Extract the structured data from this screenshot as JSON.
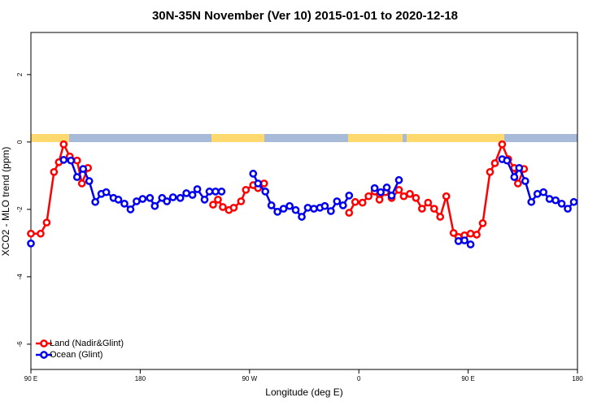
{
  "chart_data": {
    "type": "line",
    "title": "30N-35N November (Ver 10)   2015-01-01 to 2020-12-18",
    "x_label": "Longitude (deg E)",
    "y_label": "XCO2 - MLO trend (ppm)",
    "xlim": [
      90,
      540
    ],
    "xticks": [
      {
        "value": 90,
        "label": "90 E"
      },
      180,
      {
        "value": 270,
        "label": "90 W"
      },
      {
        "value": 360,
        "label": "0"
      },
      {
        "value": 450,
        "label": "90 E"
      },
      {
        "value": 540,
        "label": "180"
      }
    ],
    "ylim": [
      -6.75,
      3.25
    ],
    "yticks": [
      2,
      0,
      -2,
      -4,
      -6
    ],
    "legend": "bottom-left",
    "series": [
      {
        "name": "Land (Nadir&Glint)",
        "color": "#ff0000",
        "x": [
          90,
          98,
          103,
          109,
          113,
          117,
          122,
          128,
          132,
          137,
          190,
          240,
          244,
          248,
          253,
          257,
          263,
          267,
          273,
          277,
          282,
          320,
          352,
          357,
          363,
          368,
          373,
          377,
          382,
          387,
          393,
          397,
          402,
          407,
          412,
          417,
          422,
          427,
          432,
          438,
          442,
          447,
          452,
          457,
          462,
          468,
          472,
          478,
          483,
          488,
          491,
          496
        ],
        "values": [
          -2.72,
          -2.72,
          -2.39,
          -0.89,
          -0.6,
          -0.07,
          -0.43,
          -0.55,
          -1.23,
          -0.77,
          null,
          -1.86,
          -1.71,
          -1.93,
          -2.02,
          -1.95,
          -1.76,
          -1.42,
          -1.28,
          -1.37,
          -1.23,
          null,
          -2.1,
          -1.78,
          -1.8,
          -1.61,
          -1.47,
          -1.71,
          -1.49,
          -1.66,
          -1.42,
          -1.61,
          -1.54,
          -1.66,
          -1.98,
          -1.8,
          -1.98,
          -2.22,
          -1.61,
          -2.7,
          -2.82,
          -2.77,
          -2.72,
          -2.75,
          -2.41,
          -0.89,
          -0.63,
          -0.07,
          -0.51,
          -0.77,
          -1.23,
          -0.8
        ]
      },
      {
        "name": "Ocean (Glint)",
        "color": "#0000ee",
        "x": [
          90,
          105,
          117,
          123,
          128,
          133,
          138,
          143,
          148,
          152,
          158,
          162,
          167,
          172,
          177,
          182,
          188,
          192,
          198,
          202,
          207,
          213,
          218,
          223,
          227,
          233,
          237,
          242,
          247,
          260,
          273,
          277,
          283,
          288,
          293,
          298,
          303,
          308,
          313,
          318,
          323,
          328,
          332,
          337,
          342,
          347,
          352,
          362,
          373,
          378,
          383,
          387,
          393,
          420,
          442,
          447,
          452,
          465,
          478,
          482,
          488,
          492,
          497,
          502,
          507,
          512,
          517,
          522,
          527,
          532,
          537
        ],
        "values": [
          -3.01,
          null,
          -0.53,
          -0.55,
          -1.04,
          -0.8,
          -1.16,
          -1.78,
          -1.54,
          -1.49,
          -1.66,
          -1.71,
          -1.83,
          -2.0,
          -1.76,
          -1.69,
          -1.66,
          -1.9,
          -1.66,
          -1.76,
          -1.64,
          -1.66,
          -1.52,
          -1.57,
          -1.4,
          -1.71,
          -1.47,
          -1.47,
          -1.47,
          null,
          -0.94,
          -1.23,
          -1.47,
          -1.88,
          -2.07,
          -1.98,
          -1.9,
          -2.02,
          -2.22,
          -1.95,
          -1.98,
          -1.95,
          -1.9,
          -2.05,
          -1.76,
          -1.88,
          -1.59,
          null,
          -1.37,
          -1.49,
          -1.35,
          -1.59,
          -1.13,
          null,
          -2.94,
          -2.92,
          -3.04,
          null,
          -0.51,
          -0.55,
          -1.04,
          -0.77,
          -1.16,
          -1.78,
          -1.54,
          -1.49,
          -1.69,
          -1.73,
          -1.83,
          -1.98,
          -1.78
        ]
      }
    ]
  }
}
